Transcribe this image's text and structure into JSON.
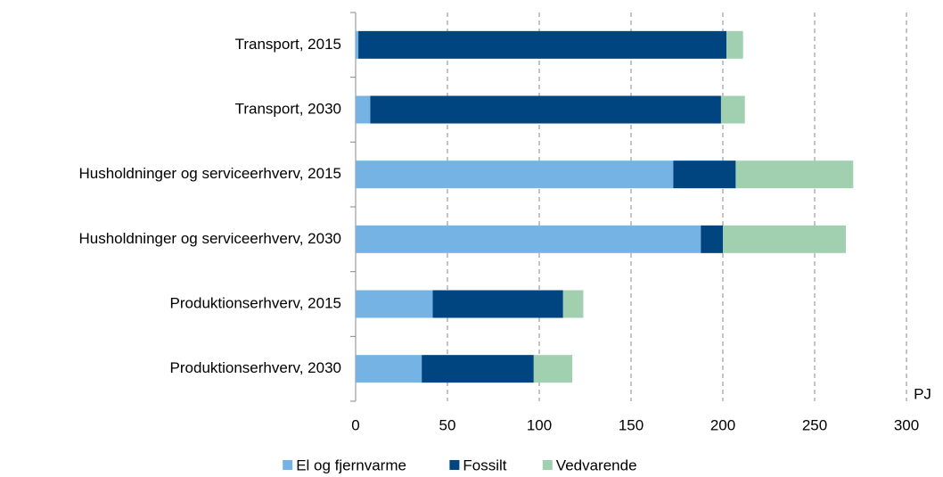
{
  "chart_data": {
    "type": "stacked_barh",
    "categories": [
      "Transport, 2015",
      "Transport, 2030",
      "Husholdninger og serviceerhverv, 2015",
      "Husholdninger og serviceerhverv, 2030",
      "Produktionserhverv, 2015",
      "Produktionserhverv, 2030"
    ],
    "series": [
      {
        "name": "El og fjernvarme",
        "color": "#74b3e3",
        "values": [
          1.5,
          8,
          173,
          188,
          42,
          36
        ]
      },
      {
        "name": "Fossilt",
        "color": "#004480",
        "values": [
          200.5,
          191,
          34,
          12,
          71,
          61
        ]
      },
      {
        "name": "Vedvarende",
        "color": "#a0d0b0",
        "values": [
          9,
          13,
          64,
          67,
          11,
          21
        ]
      }
    ],
    "xlabel": "PJ",
    "xlim": [
      0,
      300
    ],
    "xticks": [
      0,
      50,
      100,
      150,
      200,
      250,
      300
    ],
    "grid": true,
    "legend": "bottom"
  }
}
